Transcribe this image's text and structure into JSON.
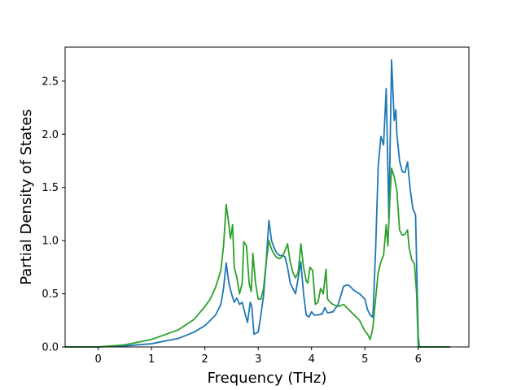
{
  "chart_data": {
    "type": "line",
    "title": "",
    "xlabel": "Frequency (THz)",
    "ylabel": "Partial Density of States",
    "xlim": [
      -0.62,
      6.95
    ],
    "ylim": [
      0,
      2.82
    ],
    "xticks": [
      0,
      1,
      2,
      3,
      4,
      5,
      6
    ],
    "yticks": [
      0.0,
      0.5,
      1.0,
      1.5,
      2.0,
      2.5
    ],
    "xtick_labels": [
      "0",
      "1",
      "2",
      "3",
      "4",
      "5",
      "6"
    ],
    "ytick_labels": [
      "0.0",
      "0.5",
      "1.0",
      "1.5",
      "2.0",
      "2.5"
    ],
    "grid": false,
    "legend": "none",
    "series": [
      {
        "color": "#1f77b4",
        "points": [
          [
            -0.62,
            0.0
          ],
          [
            0.0,
            0.0
          ],
          [
            0.5,
            0.01
          ],
          [
            1.0,
            0.03
          ],
          [
            1.5,
            0.08
          ],
          [
            1.8,
            0.14
          ],
          [
            2.0,
            0.2
          ],
          [
            2.2,
            0.3
          ],
          [
            2.3,
            0.4
          ],
          [
            2.35,
            0.55
          ],
          [
            2.4,
            0.79
          ],
          [
            2.45,
            0.6
          ],
          [
            2.5,
            0.5
          ],
          [
            2.55,
            0.42
          ],
          [
            2.6,
            0.46
          ],
          [
            2.65,
            0.4
          ],
          [
            2.7,
            0.42
          ],
          [
            2.75,
            0.32
          ],
          [
            2.8,
            0.23
          ],
          [
            2.85,
            0.42
          ],
          [
            2.88,
            0.38
          ],
          [
            2.92,
            0.12
          ],
          [
            3.0,
            0.14
          ],
          [
            3.05,
            0.3
          ],
          [
            3.1,
            0.48
          ],
          [
            3.15,
            0.8
          ],
          [
            3.2,
            1.19
          ],
          [
            3.25,
            1.0
          ],
          [
            3.3,
            0.93
          ],
          [
            3.35,
            0.88
          ],
          [
            3.4,
            0.86
          ],
          [
            3.45,
            0.86
          ],
          [
            3.5,
            0.85
          ],
          [
            3.55,
            0.75
          ],
          [
            3.6,
            0.6
          ],
          [
            3.65,
            0.55
          ],
          [
            3.7,
            0.5
          ],
          [
            3.75,
            0.65
          ],
          [
            3.8,
            0.8
          ],
          [
            3.85,
            0.5
          ],
          [
            3.9,
            0.3
          ],
          [
            3.95,
            0.28
          ],
          [
            4.0,
            0.33
          ],
          [
            4.05,
            0.3
          ],
          [
            4.1,
            0.3
          ],
          [
            4.2,
            0.31
          ],
          [
            4.25,
            0.37
          ],
          [
            4.3,
            0.32
          ],
          [
            4.4,
            0.33
          ],
          [
            4.5,
            0.4
          ],
          [
            4.6,
            0.57
          ],
          [
            4.65,
            0.58
          ],
          [
            4.7,
            0.58
          ],
          [
            4.8,
            0.53
          ],
          [
            4.9,
            0.5
          ],
          [
            5.0,
            0.45
          ],
          [
            5.05,
            0.35
          ],
          [
            5.1,
            0.3
          ],
          [
            5.15,
            0.28
          ],
          [
            5.2,
            0.9
          ],
          [
            5.25,
            1.7
          ],
          [
            5.3,
            1.98
          ],
          [
            5.35,
            1.9
          ],
          [
            5.4,
            2.43
          ],
          [
            5.45,
            1.2
          ],
          [
            5.5,
            2.7
          ],
          [
            5.55,
            2.13
          ],
          [
            5.58,
            2.23
          ],
          [
            5.6,
            2.0
          ],
          [
            5.65,
            1.75
          ],
          [
            5.7,
            1.65
          ],
          [
            5.75,
            1.64
          ],
          [
            5.8,
            1.74
          ],
          [
            5.85,
            1.48
          ],
          [
            5.9,
            1.3
          ],
          [
            5.95,
            1.24
          ],
          [
            6.0,
            0.1
          ],
          [
            6.02,
            0.0
          ],
          [
            6.1,
            0.0
          ],
          [
            6.6,
            0.0
          ]
        ]
      },
      {
        "color": "#2ca02c",
        "points": [
          [
            -0.62,
            0.0
          ],
          [
            0.0,
            0.0
          ],
          [
            0.5,
            0.02
          ],
          [
            1.0,
            0.07
          ],
          [
            1.5,
            0.16
          ],
          [
            1.8,
            0.26
          ],
          [
            2.0,
            0.38
          ],
          [
            2.1,
            0.45
          ],
          [
            2.2,
            0.56
          ],
          [
            2.3,
            0.72
          ],
          [
            2.35,
            0.95
          ],
          [
            2.4,
            1.34
          ],
          [
            2.45,
            1.15
          ],
          [
            2.48,
            1.02
          ],
          [
            2.52,
            1.15
          ],
          [
            2.55,
            0.75
          ],
          [
            2.6,
            0.65
          ],
          [
            2.65,
            0.5
          ],
          [
            2.7,
            0.6
          ],
          [
            2.73,
            0.99
          ],
          [
            2.78,
            0.95
          ],
          [
            2.83,
            0.6
          ],
          [
            2.87,
            0.52
          ],
          [
            2.9,
            0.88
          ],
          [
            2.95,
            0.6
          ],
          [
            3.0,
            0.45
          ],
          [
            3.05,
            0.45
          ],
          [
            3.1,
            0.55
          ],
          [
            3.15,
            0.8
          ],
          [
            3.2,
            1.0
          ],
          [
            3.25,
            0.92
          ],
          [
            3.3,
            0.87
          ],
          [
            3.35,
            0.84
          ],
          [
            3.4,
            0.83
          ],
          [
            3.45,
            0.85
          ],
          [
            3.5,
            0.9
          ],
          [
            3.55,
            0.97
          ],
          [
            3.6,
            0.8
          ],
          [
            3.65,
            0.7
          ],
          [
            3.7,
            0.65
          ],
          [
            3.75,
            0.7
          ],
          [
            3.8,
            0.97
          ],
          [
            3.85,
            0.75
          ],
          [
            3.9,
            0.62
          ],
          [
            3.93,
            0.6
          ],
          [
            3.97,
            0.75
          ],
          [
            4.02,
            0.72
          ],
          [
            4.07,
            0.4
          ],
          [
            4.12,
            0.42
          ],
          [
            4.17,
            0.55
          ],
          [
            4.22,
            0.5
          ],
          [
            4.27,
            0.73
          ],
          [
            4.3,
            0.45
          ],
          [
            4.35,
            0.42
          ],
          [
            4.4,
            0.4
          ],
          [
            4.5,
            0.38
          ],
          [
            4.6,
            0.4
          ],
          [
            4.7,
            0.35
          ],
          [
            4.8,
            0.3
          ],
          [
            4.9,
            0.25
          ],
          [
            5.0,
            0.15
          ],
          [
            5.05,
            0.12
          ],
          [
            5.1,
            0.07
          ],
          [
            5.15,
            0.18
          ],
          [
            5.2,
            0.45
          ],
          [
            5.25,
            0.7
          ],
          [
            5.3,
            0.8
          ],
          [
            5.35,
            0.86
          ],
          [
            5.4,
            1.15
          ],
          [
            5.43,
            0.95
          ],
          [
            5.47,
            1.4
          ],
          [
            5.5,
            1.68
          ],
          [
            5.55,
            1.6
          ],
          [
            5.6,
            1.47
          ],
          [
            5.65,
            1.1
          ],
          [
            5.7,
            1.05
          ],
          [
            5.75,
            1.06
          ],
          [
            5.8,
            1.1
          ],
          [
            5.83,
            0.93
          ],
          [
            5.88,
            0.82
          ],
          [
            5.93,
            0.78
          ],
          [
            5.97,
            0.5
          ],
          [
            6.0,
            0.0
          ],
          [
            6.1,
            0.0
          ],
          [
            6.6,
            0.0
          ]
        ]
      }
    ]
  }
}
